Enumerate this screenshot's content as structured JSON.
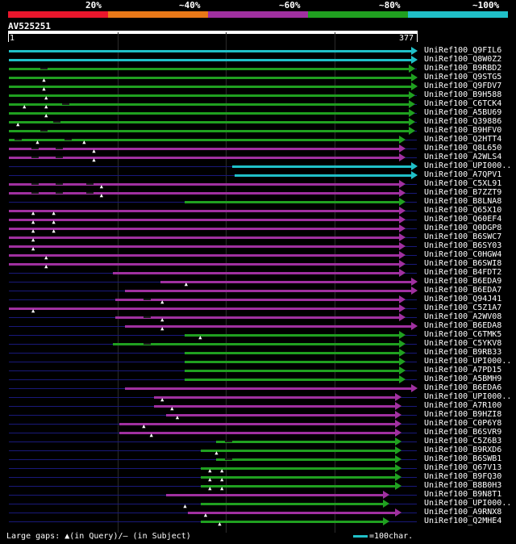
{
  "legend": {
    "labels": [
      "20%",
      "~40%",
      "~60%",
      "~80%",
      "~100%"
    ],
    "colors": [
      "#e8162c",
      "#e87818",
      "#a030a0",
      "#20a020",
      "#20c0c8"
    ]
  },
  "query": {
    "name": "AV525251",
    "start_label": "1",
    "end_label": "377",
    "length": 377
  },
  "footer": {
    "gaps_text": "Large gaps: ▲(in Query)/– (in Subject)",
    "scale_text": "=100char."
  },
  "hits": [
    {
      "name": "UniRef100_Q9FIL6",
      "start": 1,
      "end": 377,
      "tier": 4,
      "gaps": [],
      "dashes": []
    },
    {
      "name": "UniRef100_Q8W0Z2",
      "start": 1,
      "end": 377,
      "tier": 4,
      "gaps": [],
      "dashes": []
    },
    {
      "name": "UniRef100_B9RBD2",
      "start": 1,
      "end": 375,
      "tier": 3,
      "gaps": [],
      "dashes": [
        30
      ]
    },
    {
      "name": "UniRef100_Q9STG5",
      "start": 1,
      "end": 377,
      "tier": 3,
      "gaps": [
        34
      ],
      "dashes": []
    },
    {
      "name": "UniRef100_Q9FDV7",
      "start": 1,
      "end": 377,
      "tier": 3,
      "gaps": [
        34
      ],
      "dashes": []
    },
    {
      "name": "UniRef100_B9H588",
      "start": 1,
      "end": 375,
      "tier": 3,
      "gaps": [
        36
      ],
      "dashes": []
    },
    {
      "name": "UniRef100_C6TCK4",
      "start": 1,
      "end": 375,
      "tier": 3,
      "gaps": [
        16,
        36
      ],
      "dashes": [
        50
      ]
    },
    {
      "name": "UniRef100_A5BU69",
      "start": 1,
      "end": 375,
      "tier": 3,
      "gaps": [
        36
      ],
      "dashes": []
    },
    {
      "name": "UniRef100_Q39886",
      "start": 1,
      "end": 375,
      "tier": 3,
      "gaps": [
        10
      ],
      "dashes": [
        42
      ]
    },
    {
      "name": "UniRef100_B9HFV0",
      "start": 1,
      "end": 375,
      "tier": 3,
      "gaps": [],
      "dashes": [
        30
      ]
    },
    {
      "name": "UniRef100_Q2HTT4",
      "start": 1,
      "end": 366,
      "tier": 3,
      "gaps": [
        28,
        71
      ],
      "dashes": [
        6,
        52
      ]
    },
    {
      "name": "UniRef100_Q8L650",
      "start": 1,
      "end": 366,
      "tier": 2,
      "gaps": [
        80
      ],
      "dashes": [
        22,
        44
      ]
    },
    {
      "name": "UniRef100_A2WLS4",
      "start": 1,
      "end": 366,
      "tier": 2,
      "gaps": [
        80
      ],
      "dashes": [
        22,
        44
      ]
    },
    {
      "name": "UniRef100_UPI000..",
      "start": 207,
      "end": 377,
      "tier": 4,
      "gaps": [],
      "dashes": []
    },
    {
      "name": "UniRef100_A7QPV1",
      "start": 209,
      "end": 377,
      "tier": 4,
      "gaps": [],
      "dashes": []
    },
    {
      "name": "UniRef100_C5XL91",
      "start": 1,
      "end": 366,
      "tier": 2,
      "gaps": [
        87
      ],
      "dashes": [
        22,
        44,
        72
      ]
    },
    {
      "name": "UniRef100_B7ZZT9",
      "start": 1,
      "end": 366,
      "tier": 2,
      "gaps": [
        87
      ],
      "dashes": [
        22,
        44,
        72
      ]
    },
    {
      "name": "UniRef100_B8LNA8",
      "start": 163,
      "end": 366,
      "tier": 3,
      "gaps": [],
      "dashes": []
    },
    {
      "name": "UniRef100_Q65X10",
      "start": 1,
      "end": 366,
      "tier": 2,
      "gaps": [
        24,
        43
      ],
      "dashes": []
    },
    {
      "name": "UniRef100_Q60EF4",
      "start": 1,
      "end": 366,
      "tier": 2,
      "gaps": [
        24,
        43
      ],
      "dashes": []
    },
    {
      "name": "UniRef100_Q0DGP8",
      "start": 1,
      "end": 366,
      "tier": 2,
      "gaps": [
        24,
        43
      ],
      "dashes": []
    },
    {
      "name": "UniRef100_B6SWC7",
      "start": 1,
      "end": 366,
      "tier": 2,
      "gaps": [
        24
      ],
      "dashes": []
    },
    {
      "name": "UniRef100_B6SY03",
      "start": 1,
      "end": 366,
      "tier": 2,
      "gaps": [
        24
      ],
      "dashes": []
    },
    {
      "name": "UniRef100_C0HGW4",
      "start": 1,
      "end": 366,
      "tier": 2,
      "gaps": [
        36
      ],
      "dashes": []
    },
    {
      "name": "UniRef100_B6SWI8",
      "start": 1,
      "end": 366,
      "tier": 2,
      "gaps": [
        36
      ],
      "dashes": []
    },
    {
      "name": "UniRef100_B4FDT2",
      "start": 97,
      "end": 366,
      "tier": 2,
      "gaps": [],
      "dashes": []
    },
    {
      "name": "UniRef100_B6EDA9",
      "start": 141,
      "end": 377,
      "tier": 2,
      "gaps": [
        165
      ],
      "dashes": []
    },
    {
      "name": "UniRef100_B6EDA7",
      "start": 108,
      "end": 377,
      "tier": 2,
      "gaps": [],
      "dashes": []
    },
    {
      "name": "UniRef100_Q94J41",
      "start": 99,
      "end": 366,
      "tier": 2,
      "gaps": [
        143
      ],
      "dashes": [
        125
      ]
    },
    {
      "name": "UniRef100_C5Z1A7",
      "start": 1,
      "end": 366,
      "tier": 2,
      "gaps": [
        24
      ],
      "dashes": []
    },
    {
      "name": "UniRef100_A2WV08",
      "start": 99,
      "end": 366,
      "tier": 2,
      "gaps": [
        143
      ],
      "dashes": [
        125
      ]
    },
    {
      "name": "UniRef100_B6EDA8",
      "start": 108,
      "end": 377,
      "tier": 2,
      "gaps": [
        143
      ],
      "dashes": []
    },
    {
      "name": "UniRef100_C6TMK5",
      "start": 163,
      "end": 366,
      "tier": 3,
      "gaps": [
        178
      ],
      "dashes": []
    },
    {
      "name": "UniRef100_C5YKV8",
      "start": 97,
      "end": 366,
      "tier": 3,
      "gaps": [],
      "dashes": [
        125
      ]
    },
    {
      "name": "UniRef100_B9RB33",
      "start": 163,
      "end": 366,
      "tier": 3,
      "gaps": [],
      "dashes": []
    },
    {
      "name": "UniRef100_UPI000..",
      "start": 163,
      "end": 366,
      "tier": 3,
      "gaps": [],
      "dashes": []
    },
    {
      "name": "UniRef100_A7PD15",
      "start": 163,
      "end": 366,
      "tier": 3,
      "gaps": [],
      "dashes": []
    },
    {
      "name": "UniRef100_A5BMH9",
      "start": 163,
      "end": 366,
      "tier": 3,
      "gaps": [],
      "dashes": []
    },
    {
      "name": "UniRef100_B6EDA6",
      "start": 108,
      "end": 377,
      "tier": 2,
      "gaps": [],
      "dashes": []
    },
    {
      "name": "UniRef100_UPI000..",
      "start": 135,
      "end": 362,
      "tier": 2,
      "gaps": [
        143
      ],
      "dashes": []
    },
    {
      "name": "UniRef100_A7R100",
      "start": 135,
      "end": 362,
      "tier": 2,
      "gaps": [
        152
      ],
      "dashes": []
    },
    {
      "name": "UniRef100_B9HZI8",
      "start": 146,
      "end": 362,
      "tier": 2,
      "gaps": [
        157
      ],
      "dashes": []
    },
    {
      "name": "UniRef100_C0P6Y8",
      "start": 103,
      "end": 362,
      "tier": 2,
      "gaps": [
        126
      ],
      "dashes": []
    },
    {
      "name": "UniRef100_B6SVR9",
      "start": 103,
      "end": 362,
      "tier": 2,
      "gaps": [
        133
      ],
      "dashes": []
    },
    {
      "name": "UniRef100_C5Z6B3",
      "start": 192,
      "end": 362,
      "tier": 3,
      "gaps": [],
      "dashes": [
        200
      ]
    },
    {
      "name": "UniRef100_B9RXD6",
      "start": 178,
      "end": 362,
      "tier": 3,
      "gaps": [
        193
      ],
      "dashes": []
    },
    {
      "name": "UniRef100_B6SWB1",
      "start": 192,
      "end": 362,
      "tier": 3,
      "gaps": [],
      "dashes": [
        200
      ]
    },
    {
      "name": "UniRef100_Q67V13",
      "start": 178,
      "end": 362,
      "tier": 3,
      "gaps": [
        187,
        198
      ],
      "dashes": []
    },
    {
      "name": "UniRef100_B9FQ30",
      "start": 178,
      "end": 362,
      "tier": 3,
      "gaps": [
        187,
        198
      ],
      "dashes": []
    },
    {
      "name": "UniRef100_B8B0H3",
      "start": 178,
      "end": 362,
      "tier": 3,
      "gaps": [
        187,
        198
      ],
      "dashes": []
    },
    {
      "name": "UniRef100_B9N8T1",
      "start": 146,
      "end": 351,
      "tier": 2,
      "gaps": [],
      "dashes": []
    },
    {
      "name": "UniRef100_UPI000..",
      "start": 178,
      "end": 351,
      "tier": 3,
      "gaps": [
        164
      ],
      "dashes": []
    },
    {
      "name": "UniRef100_A9RNX8",
      "start": 166,
      "end": 362,
      "tier": 2,
      "gaps": [
        183
      ],
      "dashes": []
    },
    {
      "name": "UniRef100_Q2MHE4",
      "start": 178,
      "end": 351,
      "tier": 3,
      "gaps": [
        196
      ],
      "dashes": []
    }
  ]
}
